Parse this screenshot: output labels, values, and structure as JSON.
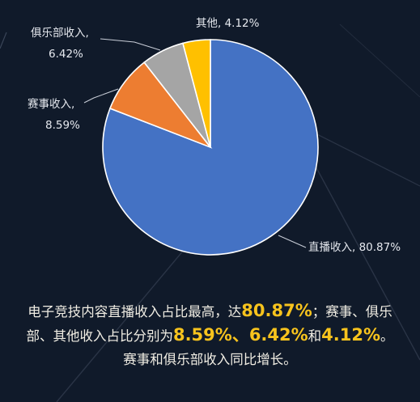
{
  "chart_data": {
    "type": "pie",
    "title": "",
    "slices": [
      {
        "name": "直播收入",
        "value": 80.87,
        "label": "直播收入, 80.87%",
        "color": "#4472c4"
      },
      {
        "name": "赛事收入",
        "value": 8.59,
        "label": "赛事收入,\n8.59%",
        "color": "#ed7d31"
      },
      {
        "name": "俱乐部收入",
        "value": 6.42,
        "label": "俱乐部收入,\n6.42%",
        "color": "#a5a5a5"
      },
      {
        "name": "其他",
        "value": 4.12,
        "label": "其他, 4.12%",
        "color": "#ffc000"
      }
    ],
    "legend": "none"
  },
  "caption": {
    "line1_pre": "电子竞技内容直播收入占比最高，达",
    "line1_val": "80.87%",
    "line1_post": "；赛事、俱乐",
    "line2_pre": "部、其他收入占比分别为",
    "line2_val1": "8.59%",
    "line2_sep1": "、",
    "line2_val2": "6.42%",
    "line2_sep2": "和",
    "line2_val3": "4.12%",
    "line2_post": "。",
    "line3": "赛事和俱乐部收入同比增长。"
  },
  "colors": {
    "background": "#101a2a",
    "highlight": "#f7c31d"
  }
}
